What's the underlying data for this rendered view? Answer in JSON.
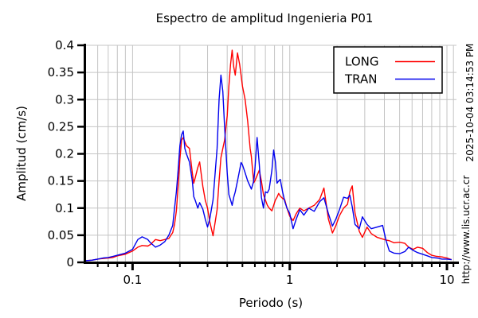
{
  "chart": {
    "title": "Espectro de amplitud Ingenieria P01",
    "xlabel": "Periodo (s)",
    "ylabel": "Amplitud (cm/s)",
    "timestamp": "2025-10-04 03:14:53 PM",
    "url": "http://www.lis.ucr.ac.cr"
  },
  "chart_data": {
    "type": "line",
    "title": "Espectro de amplitud Ingenieria P01",
    "xlabel": "Periodo (s)",
    "ylabel": "Amplitud (cm/s)",
    "x_scale": "log",
    "xlim": [
      0.05,
      11.5
    ],
    "ylim": [
      0,
      0.4
    ],
    "grid": true,
    "legend_position": "top-right",
    "colors": {
      "grid": "#c4c4c4",
      "axis": "#000000",
      "background": "#ffffff"
    },
    "x_ticks": [
      {
        "value": 0.1,
        "label": "0.1"
      },
      {
        "value": 1,
        "label": "1"
      },
      {
        "value": 10,
        "label": "10"
      }
    ],
    "x_minor_ticks": [
      0.06,
      0.07,
      0.08,
      0.09,
      0.2,
      0.3,
      0.4,
      0.5,
      0.6,
      0.7,
      0.8,
      0.9,
      2,
      3,
      4,
      5,
      6,
      7,
      8,
      9,
      11
    ],
    "y_ticks": [
      {
        "value": 0,
        "label": "0"
      },
      {
        "value": 0.05,
        "label": "0.05"
      },
      {
        "value": 0.1,
        "label": "0.1"
      },
      {
        "value": 0.15,
        "label": "0.15"
      },
      {
        "value": 0.2,
        "label": "0.2"
      },
      {
        "value": 0.25,
        "label": "0.25"
      },
      {
        "value": 0.3,
        "label": "0.3"
      },
      {
        "value": 0.35,
        "label": "0.35"
      },
      {
        "value": 0.4,
        "label": "0.4"
      }
    ],
    "x": [
      0.05,
      0.055,
      0.06,
      0.065,
      0.07,
      0.075,
      0.08,
      0.09,
      0.1,
      0.108,
      0.115,
      0.125,
      0.13,
      0.14,
      0.15,
      0.16,
      0.17,
      0.18,
      0.185,
      0.19,
      0.195,
      0.2,
      0.205,
      0.21,
      0.215,
      0.22,
      0.23,
      0.24,
      0.245,
      0.25,
      0.26,
      0.267,
      0.28,
      0.29,
      0.3,
      0.31,
      0.325,
      0.345,
      0.355,
      0.365,
      0.375,
      0.385,
      0.4,
      0.41,
      0.42,
      0.43,
      0.44,
      0.45,
      0.465,
      0.48,
      0.49,
      0.5,
      0.52,
      0.54,
      0.56,
      0.57,
      0.59,
      0.6,
      0.62,
      0.64,
      0.66,
      0.68,
      0.7,
      0.72,
      0.74,
      0.77,
      0.79,
      0.81,
      0.83,
      0.85,
      0.87,
      0.9,
      0.93,
      0.96,
      1.0,
      1.05,
      1.1,
      1.16,
      1.23,
      1.32,
      1.43,
      1.55,
      1.65,
      1.76,
      1.87,
      1.96,
      2.07,
      2.2,
      2.33,
      2.41,
      2.5,
      2.6,
      2.77,
      2.9,
      3.1,
      3.3,
      3.6,
      3.9,
      4.1,
      4.3,
      4.6,
      5.0,
      5.4,
      5.7,
      6.1,
      6.5,
      7.0,
      7.5,
      8.0,
      8.6,
      9.3,
      10.0,
      10.7
    ],
    "series": [
      {
        "name": "LONG",
        "color": "#ff0000",
        "values": [
          0.003,
          0.004,
          0.006,
          0.007,
          0.008,
          0.009,
          0.012,
          0.015,
          0.021,
          0.028,
          0.031,
          0.03,
          0.033,
          0.042,
          0.04,
          0.042,
          0.044,
          0.055,
          0.07,
          0.095,
          0.14,
          0.19,
          0.225,
          0.23,
          0.222,
          0.215,
          0.21,
          0.165,
          0.146,
          0.155,
          0.175,
          0.185,
          0.14,
          0.115,
          0.1,
          0.075,
          0.049,
          0.097,
          0.15,
          0.193,
          0.21,
          0.225,
          0.27,
          0.325,
          0.365,
          0.391,
          0.36,
          0.345,
          0.386,
          0.365,
          0.345,
          0.325,
          0.3,
          0.26,
          0.21,
          0.195,
          0.147,
          0.15,
          0.16,
          0.17,
          0.15,
          0.125,
          0.115,
          0.105,
          0.1,
          0.095,
          0.105,
          0.115,
          0.12,
          0.127,
          0.122,
          0.118,
          0.115,
          0.1,
          0.085,
          0.077,
          0.09,
          0.1,
          0.095,
          0.1,
          0.105,
          0.116,
          0.137,
          0.08,
          0.054,
          0.067,
          0.086,
          0.1,
          0.107,
          0.13,
          0.141,
          0.091,
          0.057,
          0.046,
          0.065,
          0.053,
          0.046,
          0.043,
          0.041,
          0.04,
          0.036,
          0.037,
          0.035,
          0.028,
          0.024,
          0.028,
          0.026,
          0.018,
          0.013,
          0.011,
          0.01,
          0.008,
          0.005
        ]
      },
      {
        "name": "TRAN",
        "color": "#0000ee",
        "values": [
          0.003,
          0.004,
          0.006,
          0.008,
          0.009,
          0.011,
          0.013,
          0.017,
          0.024,
          0.042,
          0.047,
          0.042,
          0.036,
          0.028,
          0.032,
          0.038,
          0.05,
          0.068,
          0.1,
          0.13,
          0.17,
          0.215,
          0.235,
          0.242,
          0.21,
          0.2,
          0.185,
          0.15,
          0.121,
          0.115,
          0.1,
          0.11,
          0.098,
          0.08,
          0.065,
          0.08,
          0.115,
          0.21,
          0.3,
          0.345,
          0.315,
          0.25,
          0.165,
          0.125,
          0.115,
          0.105,
          0.12,
          0.13,
          0.15,
          0.17,
          0.184,
          0.18,
          0.165,
          0.15,
          0.14,
          0.135,
          0.15,
          0.17,
          0.23,
          0.18,
          0.12,
          0.1,
          0.13,
          0.128,
          0.135,
          0.17,
          0.207,
          0.185,
          0.146,
          0.15,
          0.153,
          0.13,
          0.112,
          0.1,
          0.09,
          0.062,
          0.08,
          0.097,
          0.087,
          0.1,
          0.094,
          0.112,
          0.119,
          0.09,
          0.067,
          0.079,
          0.097,
          0.12,
          0.118,
          0.124,
          0.102,
          0.07,
          0.062,
          0.084,
          0.07,
          0.062,
          0.065,
          0.068,
          0.04,
          0.021,
          0.017,
          0.016,
          0.02,
          0.028,
          0.022,
          0.018,
          0.015,
          0.012,
          0.009,
          0.008,
          0.006,
          0.006,
          0.005
        ]
      }
    ]
  }
}
